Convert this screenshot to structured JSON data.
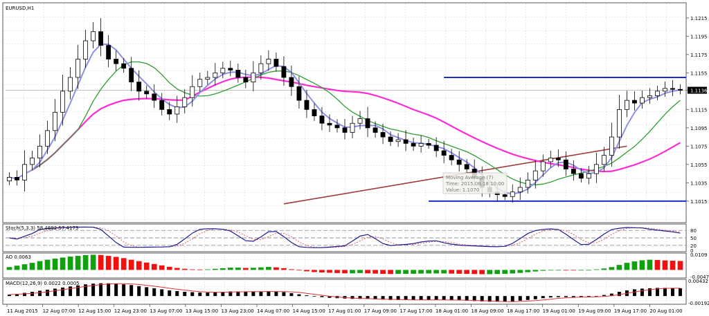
{
  "window": {
    "symbol_title": "EURUSD,H1"
  },
  "chart_data": {
    "type": "candlestick",
    "symbol": "EURUSD",
    "timeframe": "H1",
    "price_axis": {
      "ylim": [
        1.0993,
        1.123
      ],
      "ticks": [
        "1.1215",
        "1.1195",
        "1.1175",
        "1.1155",
        "1.1136",
        "1.1115",
        "1.1095",
        "1.1075",
        "1.1055",
        "1.1035",
        "1.1015"
      ],
      "current_price": "1.1136"
    },
    "time_labels": [
      "11 Aug 2015",
      "12 Aug 07:00",
      "12 Aug 15:00",
      "12 Aug 23:00",
      "13 Aug 07:00",
      "13 Aug 15:00",
      "13 Aug 23:00",
      "14 Aug 07:00",
      "14 Aug 15:00",
      "17 Aug 01:00",
      "17 Aug 09:00",
      "17 Aug 17:00",
      "18 Aug 01:00",
      "18 Aug 09:00",
      "18 Aug 17:00",
      "19 Aug 01:00",
      "19 Aug 09:00",
      "19 Aug 17:00",
      "20 Aug 01:00"
    ],
    "closes": [
      1.1041,
      1.1038,
      1.1055,
      1.1062,
      1.1075,
      1.1092,
      1.1112,
      1.1135,
      1.115,
      1.117,
      1.119,
      1.12,
      1.1185,
      1.117,
      1.1165,
      1.116,
      1.1145,
      1.1135,
      1.1132,
      1.1125,
      1.1115,
      1.111,
      1.1118,
      1.1128,
      1.114,
      1.1148,
      1.115,
      1.1155,
      1.116,
      1.1158,
      1.115,
      1.1145,
      1.1155,
      1.1165,
      1.117,
      1.1162,
      1.115,
      1.114,
      1.1125,
      1.1115,
      1.1108,
      1.11,
      1.1098,
      1.1095,
      1.109,
      1.11,
      1.1105,
      1.1095,
      1.109,
      1.1085,
      1.108,
      1.1082,
      1.1078,
      1.1075,
      1.1078,
      1.1076,
      1.107,
      1.1065,
      1.106,
      1.1055,
      1.105,
      1.104,
      1.103,
      1.1025,
      1.1022,
      1.102,
      1.1025,
      1.103,
      1.1038,
      1.1048,
      1.1058,
      1.1062,
      1.106,
      1.105,
      1.1045,
      1.104,
      1.1045,
      1.1055,
      1.1065,
      1.1085,
      1.1115,
      1.1125,
      1.1122,
      1.1128,
      1.113,
      1.1135,
      1.1138,
      1.1137,
      1.1136
    ],
    "indicators": {
      "ma_tooltip": {
        "line1": "Moving Average (7)",
        "line2": "Time: 2015.08.18 10:00",
        "line3": "Value: 1.1070"
      },
      "horizontal_levels": [
        1.115,
        1.1015
      ],
      "colors": {
        "ma_fast": "#8f8fe8",
        "ma_mid": "#2e9e2e",
        "ma_slow": "#ff2ad4",
        "trend": "#9e3a3a",
        "level": "#1a2acc",
        "bull_candle": "#ffffff",
        "bear_candle": "#000000"
      }
    },
    "stochastic": {
      "label": "Stoch(5,3,3) 58.4692 57.4173",
      "ticks": [
        "80",
        "50",
        "20",
        "0"
      ],
      "levels": [
        80,
        50,
        20
      ]
    },
    "ao": {
      "label": "AO 0.0063",
      "ticks": [
        "0.0109",
        "-0.0047"
      ],
      "values": [
        0.002,
        0.003,
        0.004,
        0.005,
        0.0062,
        0.0072,
        0.008,
        0.0087,
        0.0094,
        0.0099,
        0.0104,
        0.0107,
        0.0105,
        0.0099,
        0.0092,
        0.0083,
        0.0072,
        0.0062,
        0.0052,
        0.0042,
        0.0032,
        0.0022,
        0.0014,
        0.0008,
        0.0004,
        0.0003,
        0.0004,
        0.0008,
        0.0012,
        0.0016,
        0.0016,
        0.0014,
        0.0015,
        0.0018,
        0.0021,
        0.0018,
        0.0012,
        0.0005,
        -0.0003,
        -0.001,
        -0.0015,
        -0.0018,
        -0.002,
        -0.0022,
        -0.0024,
        -0.0024,
        -0.0022,
        -0.0024,
        -0.0026,
        -0.0028,
        -0.0029,
        -0.0028,
        -0.0028,
        -0.0027,
        -0.0026,
        -0.0025,
        -0.0025,
        -0.0025,
        -0.0026,
        -0.0027,
        -0.0028,
        -0.0029,
        -0.003,
        -0.003,
        -0.0029,
        -0.0028,
        -0.0025,
        -0.0021,
        -0.0016,
        -0.0011,
        -0.0006,
        -0.0002,
        -0.0001,
        -0.0002,
        -0.0003,
        -0.0003,
        0.0,
        0.0004,
        0.001,
        0.002,
        0.0035,
        0.005,
        0.006,
        0.0068,
        0.0072,
        0.007,
        0.0067,
        0.0065,
        0.0063
      ]
    },
    "macd": {
      "label": "MACD(12,26,9) 0.0022 0.0005",
      "ticks": [
        "0.00432",
        "-0.00192"
      ],
      "values": [
        0.0004,
        0.0006,
        0.0009,
        0.0012,
        0.0015,
        0.0018,
        0.0021,
        0.0024,
        0.0027,
        0.003,
        0.0033,
        0.0035,
        0.0036,
        0.0036,
        0.0035,
        0.0033,
        0.0031,
        0.0028,
        0.0025,
        0.0022,
        0.0019,
        0.0016,
        0.0014,
        0.0012,
        0.0011,
        0.001,
        0.001,
        0.0011,
        0.0012,
        0.0013,
        0.0013,
        0.0012,
        0.0012,
        0.0013,
        0.0014,
        0.0013,
        0.0011,
        0.0008,
        0.0005,
        0.0002,
        -0.0001,
        -0.0003,
        -0.0005,
        -0.0006,
        -0.0007,
        -0.0008,
        -0.0008,
        -0.0008,
        -0.0009,
        -0.001,
        -0.0011,
        -0.0011,
        -0.0011,
        -0.0011,
        -0.0011,
        -0.0011,
        -0.0011,
        -0.0011,
        -0.0012,
        -0.0012,
        -0.0013,
        -0.0014,
        -0.0015,
        -0.0016,
        -0.0016,
        -0.0016,
        -0.0015,
        -0.0013,
        -0.0011,
        -0.0009,
        -0.0006,
        -0.0004,
        -0.0003,
        -0.0003,
        -0.0003,
        -0.0003,
        -0.0002,
        0.0,
        0.0003,
        0.0007,
        0.0012,
        0.0016,
        0.0019,
        0.0021,
        0.0022,
        0.0023,
        0.0023,
        0.0022,
        0.0022
      ]
    }
  }
}
